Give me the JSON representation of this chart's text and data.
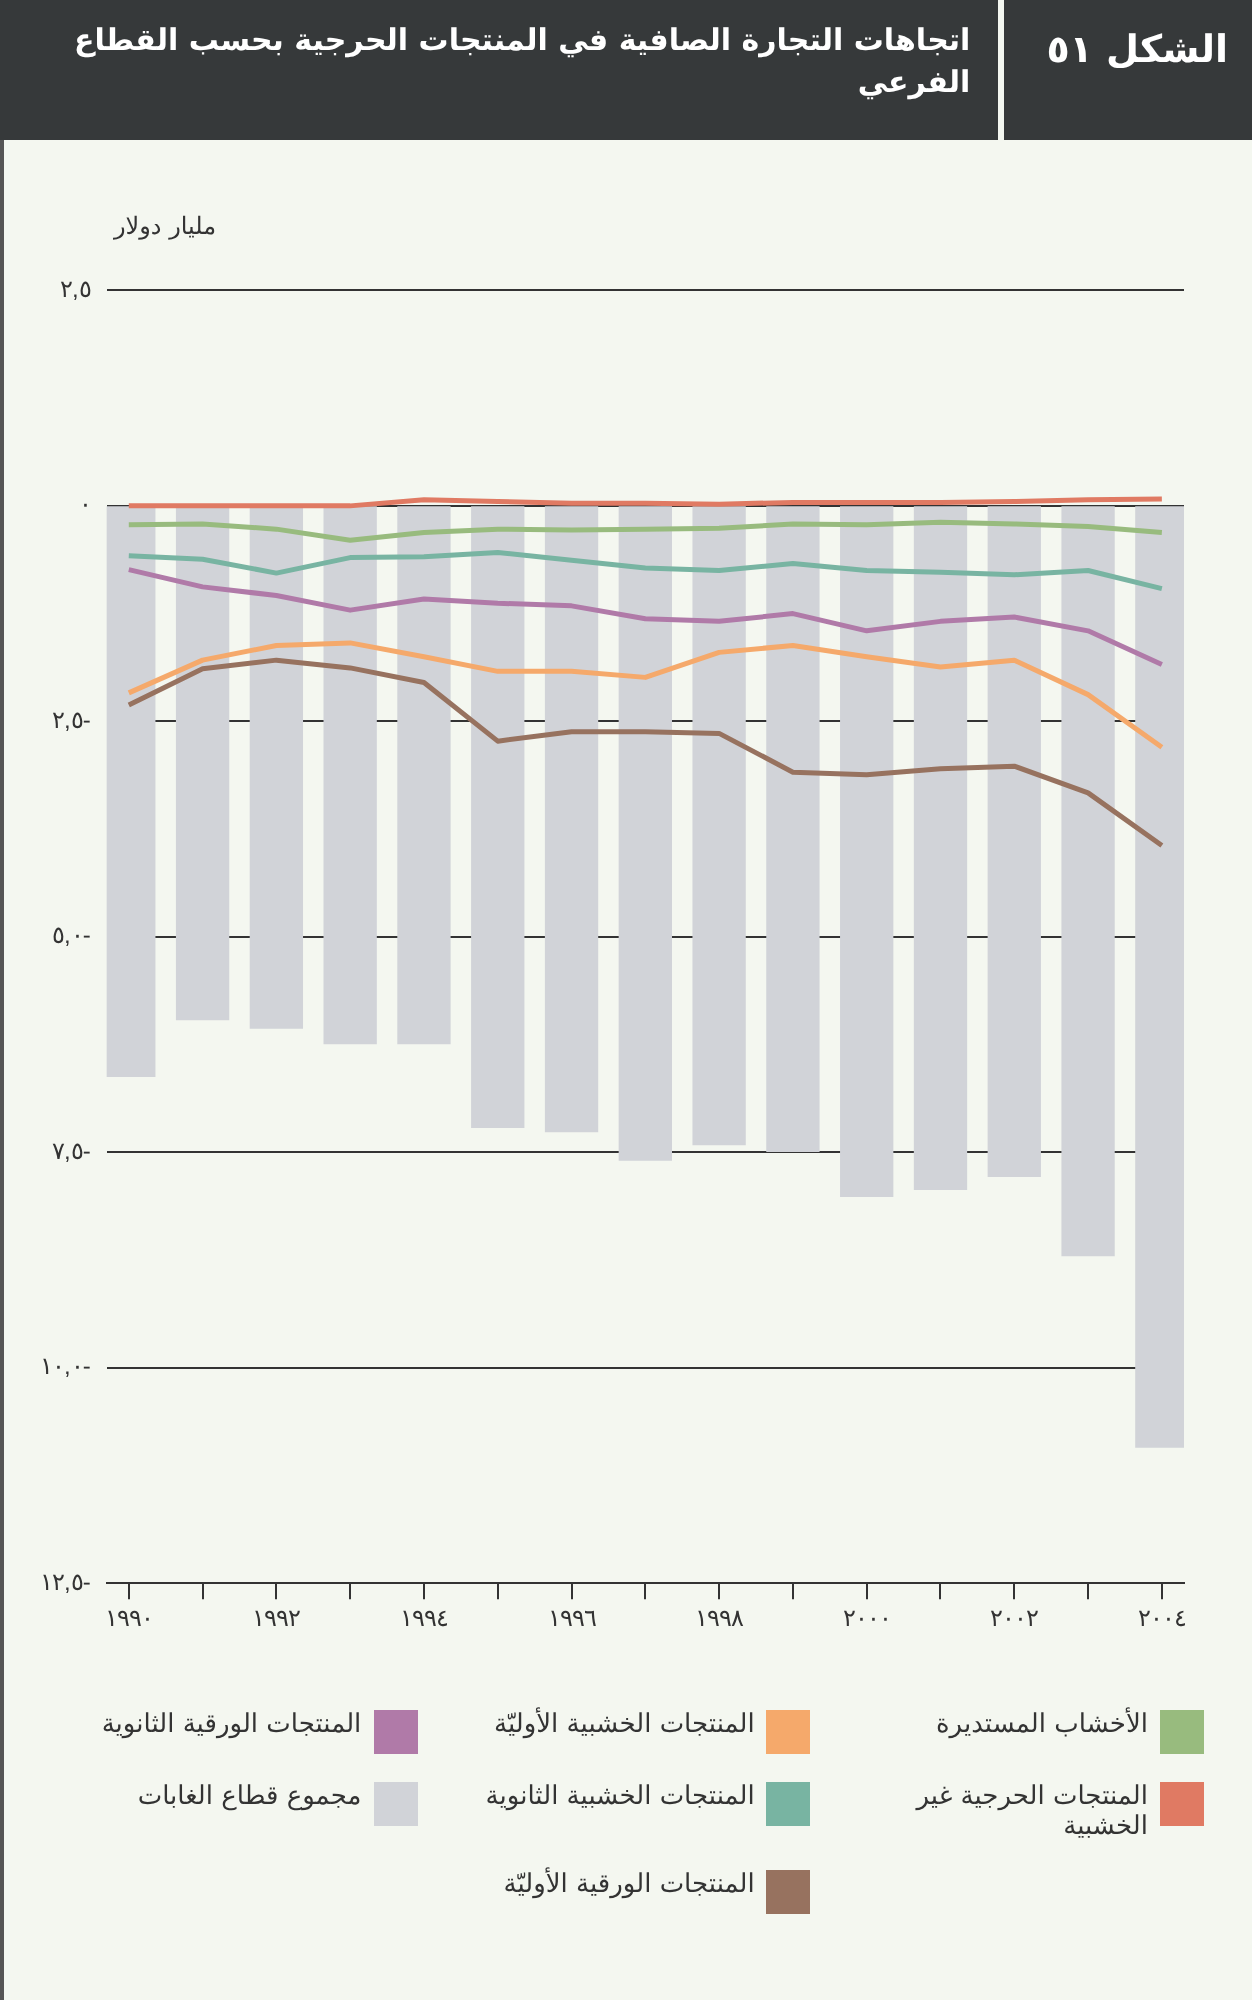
{
  "chart_data": {
    "type": "line",
    "title": "اتجاهات التجارة الصافية في المنتجات الحرجية بحسب القطاع الفرعي",
    "ylabel": "مليار دولار",
    "annotations": [
      "الشكل ٥١"
    ],
    "x": [
      1990,
      1991,
      1992,
      1993,
      1994,
      1995,
      1996,
      1997,
      1998,
      1999,
      2000,
      2001,
      2002,
      2003,
      2004
    ],
    "xlim": [
      1989.7,
      2004.3
    ],
    "xticks": [
      {
        "value": 1990,
        "label": "١٩٩٠"
      },
      {
        "value": 1991,
        "label": null
      },
      {
        "value": 1992,
        "label": "١٩٩٢"
      },
      {
        "value": 1993,
        "label": null
      },
      {
        "value": 1994,
        "label": "١٩٩٤"
      },
      {
        "value": 1995,
        "label": null
      },
      {
        "value": 1996,
        "label": "١٩٩٦"
      },
      {
        "value": 1997,
        "label": null
      },
      {
        "value": 1998,
        "label": "١٩٩٨"
      },
      {
        "value": 1999,
        "label": null
      },
      {
        "value": 2000,
        "label": "٢٠٠٠"
      },
      {
        "value": 2001,
        "label": null
      },
      {
        "value": 2002,
        "label": "٢٠٠٢"
      },
      {
        "value": 2003,
        "label": null
      },
      {
        "value": 2004,
        "label": "٢٠٠٤"
      }
    ],
    "ylim": [
      -12.5,
      2.5
    ],
    "yticks": [
      {
        "value": 2.5,
        "label": "٢,٥"
      },
      {
        "value": 0,
        "label": "٠"
      },
      {
        "value": -2.5,
        "label": "٢,٥-"
      },
      {
        "value": -5,
        "label": "٥,٠-"
      },
      {
        "value": -7.5,
        "label": "٧,٥-"
      },
      {
        "value": -10,
        "label": "١٠,٠-"
      },
      {
        "value": -12.5,
        "label": "١٢,٥-"
      }
    ],
    "grid": "y",
    "legend": "bottom",
    "marker": "none",
    "series": [
      {
        "name": "الأخشاب المستديرة",
        "color": "#98bb7e",
        "values": [
          -0.22,
          -0.21,
          -0.27,
          -0.4,
          -0.31,
          -0.27,
          -0.28,
          -0.27,
          -0.26,
          -0.21,
          -0.22,
          -0.19,
          -0.21,
          -0.24,
          -0.31
        ]
      },
      {
        "name": "المنتجات الخشبية الأوليّة",
        "color": "#f5a96b",
        "values": [
          -2.17,
          -1.79,
          -1.62,
          -1.59,
          -1.75,
          -1.92,
          -1.92,
          -1.99,
          -1.7,
          -1.62,
          -1.75,
          -1.87,
          -1.79,
          -2.19,
          -2.8
        ]
      },
      {
        "name": "المنتجات الورقية الثانوية",
        "color": "#b07aa8",
        "values": [
          -0.74,
          -0.94,
          -1.04,
          -1.21,
          -1.08,
          -1.13,
          -1.16,
          -1.31,
          -1.34,
          -1.25,
          -1.45,
          -1.34,
          -1.29,
          -1.45,
          -1.84
        ]
      },
      {
        "name": "المنتجات الحرجية غير الخشبية",
        "color": "#e07a63",
        "values": [
          0,
          0,
          0,
          0,
          0.07,
          0.05,
          0.03,
          0.03,
          0.02,
          0.04,
          0.04,
          0.04,
          0.05,
          0.07,
          0.08
        ]
      },
      {
        "name": "المنتجات الخشبية الثانوية",
        "color": "#78b4a2",
        "values": [
          -0.58,
          -0.62,
          -0.78,
          -0.6,
          -0.59,
          -0.54,
          -0.63,
          -0.72,
          -0.75,
          -0.67,
          -0.75,
          -0.77,
          -0.8,
          -0.75,
          -0.96
        ]
      },
      {
        "name": "مجموع قطاع الغابات",
        "type": "bar",
        "color": "#d1d3d8",
        "values": [
          -6.62,
          -5.96,
          -6.06,
          -6.24,
          -6.24,
          -7.21,
          -7.26,
          -7.59,
          -7.41,
          -7.49,
          -8.01,
          -7.93,
          -7.78,
          -8.7,
          -10.92
        ]
      },
      {
        "name": "المنتجات الورقية الأوليّة",
        "color": "#97725f",
        "values": [
          -2.31,
          -1.89,
          -1.79,
          -1.88,
          -2.05,
          -2.73,
          -2.62,
          -2.62,
          -2.64,
          -3.09,
          -3.12,
          -3.05,
          -3.02,
          -3.33,
          -3.94
        ]
      }
    ]
  }
}
